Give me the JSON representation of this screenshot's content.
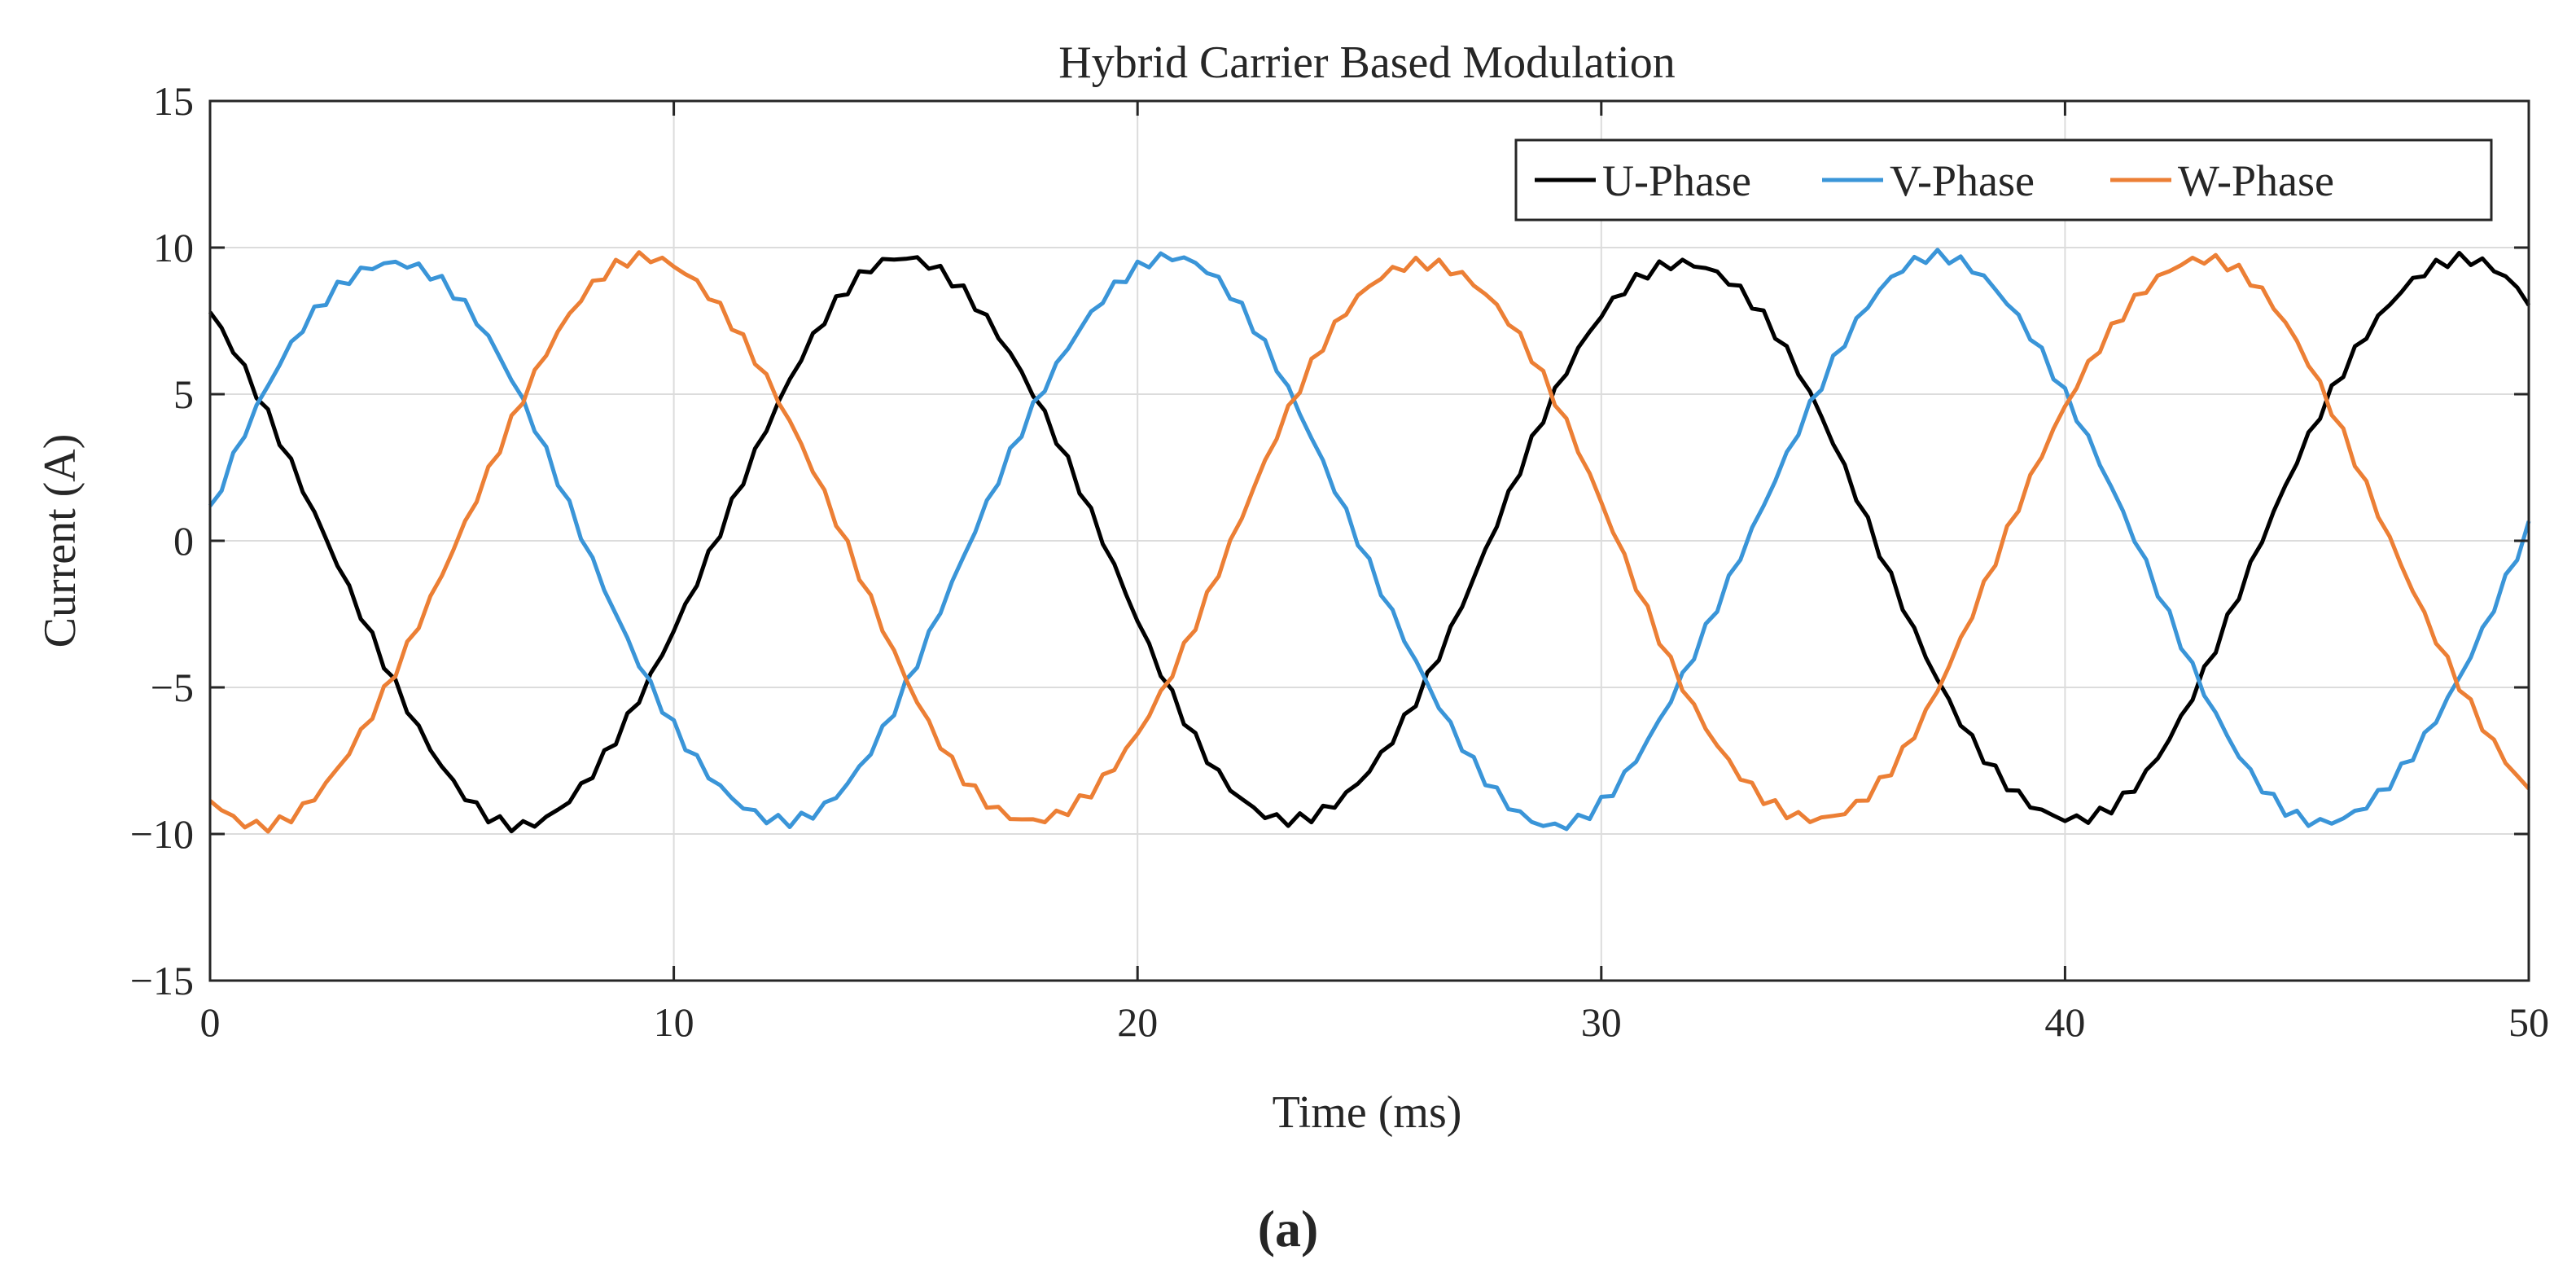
{
  "chart_data": {
    "type": "line",
    "title": "Hybrid Carrier Based Modulation",
    "xlabel": "Time (ms)",
    "ylabel": "Current (A)",
    "xlim": [
      0,
      50
    ],
    "ylim": [
      -15,
      15
    ],
    "xticks": [
      0,
      10,
      20,
      30,
      40,
      50
    ],
    "xtick_labels": [
      "0",
      "10",
      "20",
      "30",
      "40",
      "50"
    ],
    "yticks": [
      -15,
      -10,
      -5,
      0,
      5,
      10,
      15
    ],
    "ytick_labels": [
      "−15",
      "−10",
      "−5",
      "0",
      "5",
      "10",
      "15"
    ],
    "grid": true,
    "legend_position": "top-right",
    "caption": "(a)",
    "waveform": {
      "amplitude_a": 9.6,
      "period_ms": 16.7,
      "u_phase_at_t0_a": 7.8,
      "phase_shift_deg": 120,
      "ripple_a": 0.35,
      "sample_step_ms": 0.25
    },
    "series": [
      {
        "name": "U-Phase",
        "color": "#000000",
        "phase_deg": 0
      },
      {
        "name": "V-Phase",
        "color": "#3a95d8",
        "phase_deg": -120
      },
      {
        "name": "W-Phase",
        "color": "#ec7f35",
        "phase_deg": 120
      }
    ]
  }
}
